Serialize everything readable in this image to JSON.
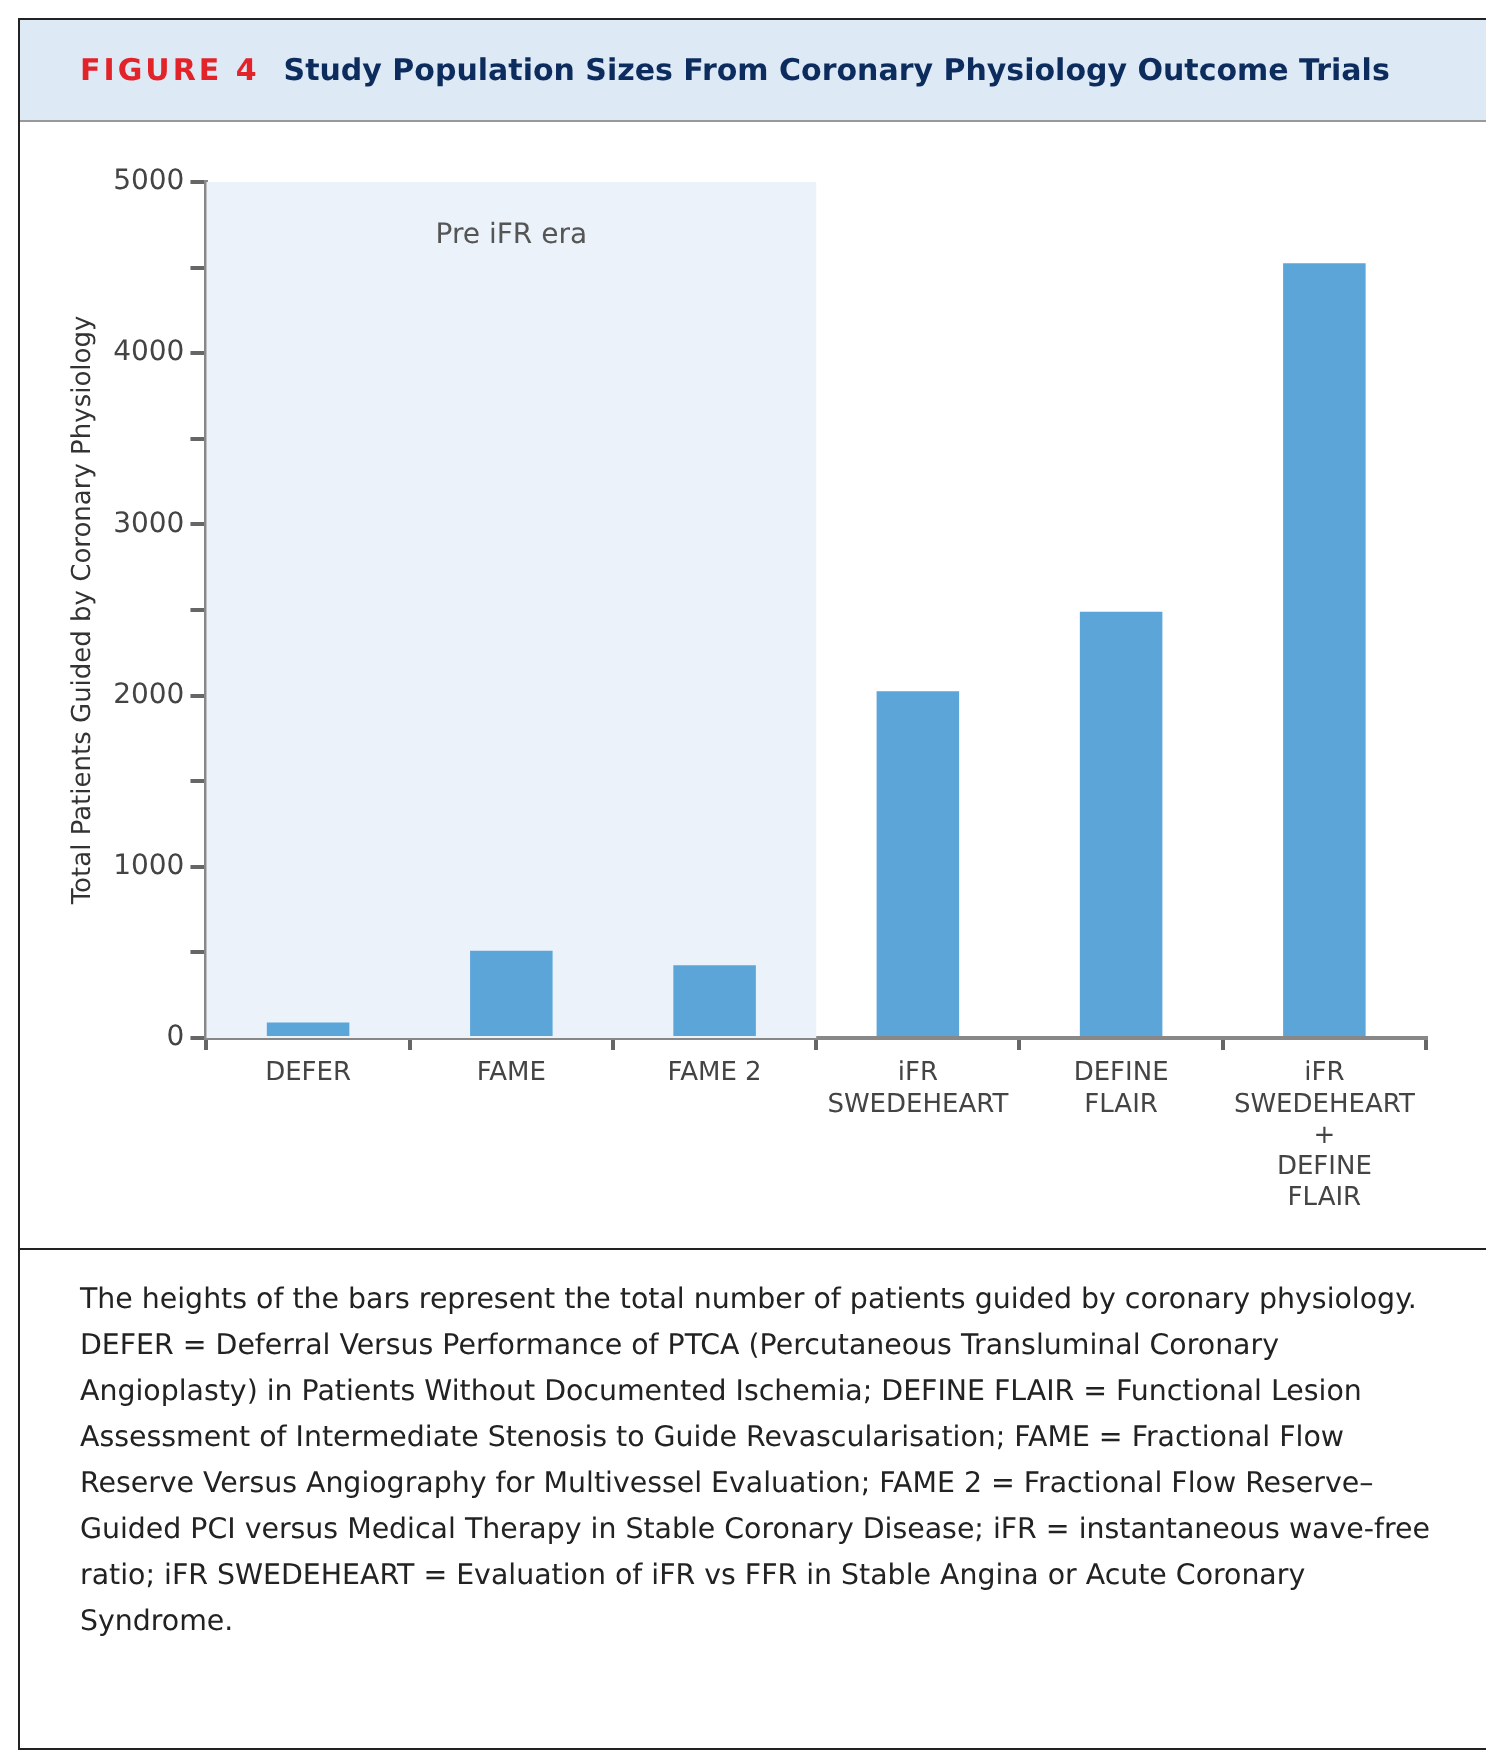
{
  "chart_data": {
    "type": "bar",
    "title": "Study Population Sizes From Coronary Physiology Outcome Trials",
    "ylabel": "Total Patients Guided by Coronary Physiology",
    "categories": [
      "DEFER",
      "FAME",
      "FAME 2",
      "iFR\nSWEDEHEART",
      "DEFINE\nFLAIR",
      "iFR\nSWEDEHEART\n+\nDEFINE\nFLAIR"
    ],
    "values": [
      90,
      510,
      425,
      2025,
      2490,
      4525
    ],
    "color": "#5ba5d9",
    "ylim": [
      0,
      5000
    ],
    "yticks": [
      0,
      {
        "value": 500,
        "label": null
      },
      1000,
      {
        "value": 1500,
        "label": null
      },
      2000,
      {
        "value": 2500,
        "label": null
      },
      3000,
      {
        "value": 3500,
        "label": null
      },
      4000,
      {
        "value": 4500,
        "label": null
      },
      5000
    ],
    "grid": false,
    "legend": false,
    "bands": [
      {
        "axis": "x",
        "from": "DEFER",
        "to": "FAME 2",
        "label": "Pre iFR era",
        "color": "#ebf2fa"
      }
    ],
    "annotations": [
      "FIGURE 4",
      "The heights of the bars represent the total number of patients guided by coronary physiology. DEFER = Deferral Versus Performance of PTCA (Percutaneous Transluminal Coronary Angioplasty) in Patients Without Documented Ischemia; DEFINE FLAIR = Functional Lesion Assessment of Intermediate Stenosis to Guide Revascularisation; FAME = Fractional Flow Reserve Versus Angiography for Multivessel Evaluation; FAME 2 = Fractional Flow Reserve–Guided PCI versus Medical Therapy in Stable Coronary Disease; iFR = instantaneous wave-free ratio; iFR SWEDEHEART = Evaluation of iFR vs FFR in Stable Angina or Acute Coronary Syndrome."
    ]
  }
}
